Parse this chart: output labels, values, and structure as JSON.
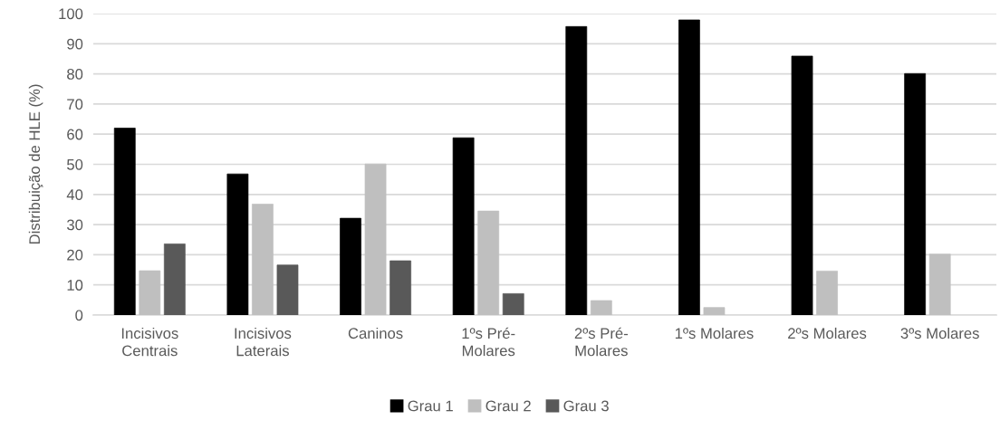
{
  "chart_data": {
    "type": "bar",
    "ylabel": "Distribuição de HLE (%)",
    "categories": [
      "Incisivos\nCentrais",
      "Incisivos\nLaterais",
      "Caninos",
      "1ºs Pré-\nMolares",
      "2ºs Pré-\nMolares",
      "1ºs Molares",
      "2ºs Molares",
      "3ºs Molares"
    ],
    "series": [
      {
        "name": "Grau 1",
        "color": "#000000",
        "values": [
          62,
          46.8,
          32.1,
          58.8,
          95.7,
          97.9,
          85.9,
          80.1
        ]
      },
      {
        "name": "Grau 2",
        "color": "#bfbfbf",
        "values": [
          14.7,
          36.8,
          50.1,
          34.5,
          4.8,
          2.5,
          14.6,
          20.2
        ]
      },
      {
        "name": "Grau 3",
        "color": "#595959",
        "values": [
          23.6,
          16.6,
          18,
          7.1,
          null,
          null,
          null,
          null
        ]
      }
    ],
    "ylim": [
      0,
      100
    ],
    "yticks": [
      0,
      10,
      20,
      30,
      40,
      50,
      60,
      70,
      80,
      90,
      100
    ],
    "grid": "y",
    "legend": "bottom"
  }
}
